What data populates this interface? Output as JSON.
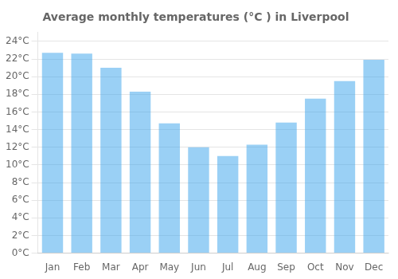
{
  "chart_data": {
    "type": "bar",
    "title": "Average monthly temperatures (°C ) in Liverpool",
    "categories": [
      "Jan",
      "Feb",
      "Mar",
      "Apr",
      "May",
      "Jun",
      "Jul",
      "Aug",
      "Sep",
      "Oct",
      "Nov",
      "Dec"
    ],
    "values": [
      22.7,
      22.6,
      21.0,
      18.3,
      14.7,
      12.0,
      11.0,
      12.3,
      14.8,
      17.5,
      19.5,
      21.9
    ],
    "ylim": [
      0,
      25
    ],
    "yticks": [
      {
        "value": 0,
        "label": "0°C"
      },
      {
        "value": 2,
        "label": "2°C"
      },
      {
        "value": 4,
        "label": "4°C"
      },
      {
        "value": 6,
        "label": "6°C"
      },
      {
        "value": 8,
        "label": "8°C"
      },
      {
        "value": 10,
        "label": "10°C"
      },
      {
        "value": 12,
        "label": "12°C"
      },
      {
        "value": 14,
        "label": "14°C"
      },
      {
        "value": 16,
        "label": "16°C"
      },
      {
        "value": 18,
        "label": "18°C"
      },
      {
        "value": 20,
        "label": "20°C"
      },
      {
        "value": 22,
        "label": "22°C"
      },
      {
        "value": 24,
        "label": "24°C"
      }
    ],
    "grid": true
  }
}
